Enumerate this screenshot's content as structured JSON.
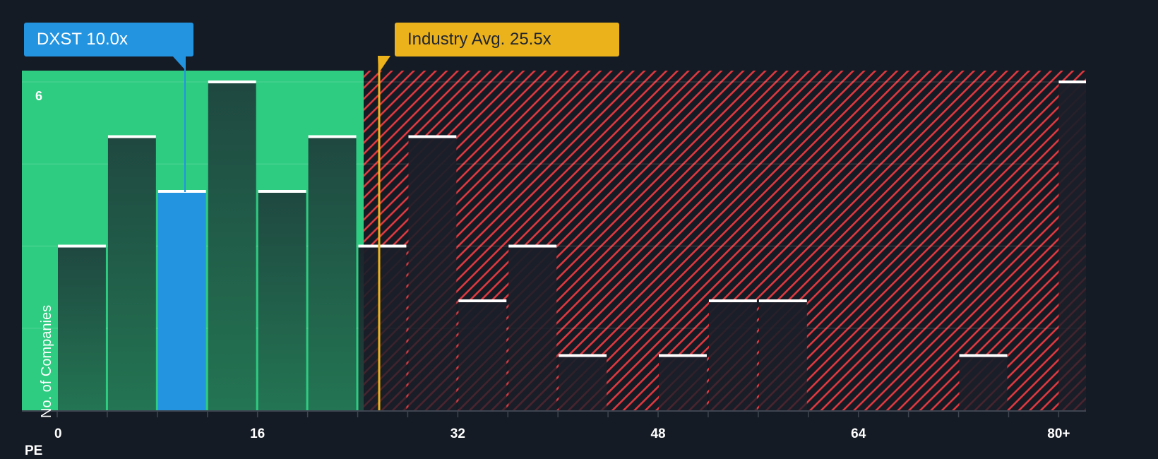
{
  "chart_data": {
    "type": "bar",
    "title": "",
    "xlabel": "PE",
    "ylabel": "No. of Companies",
    "x_tick_labels": [
      "0",
      "16",
      "32",
      "48",
      "64",
      "80+"
    ],
    "y_tick_labels": [
      "6"
    ],
    "ylim": [
      0,
      6
    ],
    "xlim": [
      0,
      82
    ],
    "bin_width": 4,
    "categories": [
      "0-4",
      "4-8",
      "8-12",
      "12-16",
      "16-20",
      "20-24",
      "24-28",
      "28-32",
      "32-36",
      "36-40",
      "40-44",
      "44-48",
      "48-52",
      "52-56",
      "56-60",
      "60-64",
      "64-68",
      "68-72",
      "72-76",
      "76-80",
      "80+"
    ],
    "values": [
      3,
      5,
      4,
      6,
      4,
      5,
      3,
      5,
      2,
      3,
      1,
      0,
      1,
      2,
      2,
      0,
      0,
      0,
      1,
      0,
      6
    ],
    "highlight_bin": "8-12",
    "company": {
      "ticker": "DXST",
      "pe": 10.0,
      "label": "DXST 10.0x",
      "color": "#2394e0"
    },
    "industry": {
      "pe": 25.5,
      "label": "Industry Avg. 25.5x",
      "color": "#ecb21b"
    },
    "regions": [
      {
        "name": "below-industry",
        "range": [
          0,
          24
        ],
        "color": "#2ecc81"
      },
      {
        "name": "above-industry",
        "range": [
          24,
          82
        ],
        "pattern": "red-hatch",
        "color": "#e0383f"
      }
    ],
    "grid": true,
    "legend": "none"
  },
  "labels": {
    "company_callout": "DXST 10.0x",
    "industry_callout": "Industry Avg. 25.5x",
    "x_axis_title": "PE",
    "y_axis_title": "No. of Companies",
    "y_top_tick": "6"
  },
  "colors": {
    "background": "#151b24",
    "green_region": "#2ecc81",
    "bar_dark_top": "#1f4840",
    "bar_dark_bottom": "#237553",
    "company": "#2394e0",
    "industry": "#ecb21b",
    "hatch": "#e0383f"
  }
}
